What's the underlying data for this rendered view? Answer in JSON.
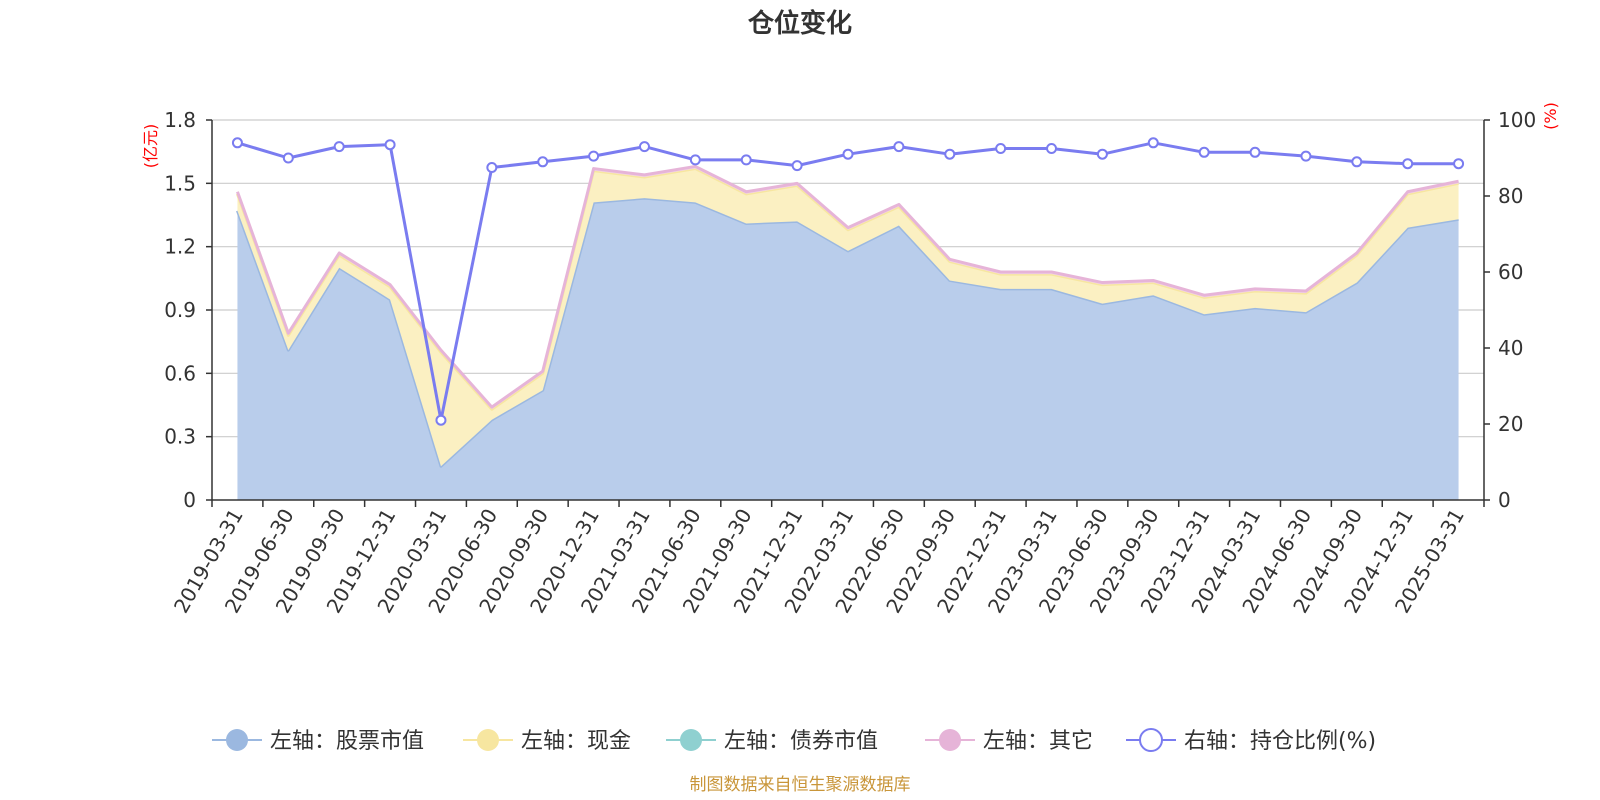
{
  "chart_data": {
    "type": "area",
    "title": "仓位变化",
    "categories": [
      "2019-03-31",
      "2019-06-30",
      "2019-09-30",
      "2019-12-31",
      "2020-03-31",
      "2020-06-30",
      "2020-09-30",
      "2020-12-31",
      "2021-03-31",
      "2021-06-30",
      "2021-09-30",
      "2021-12-31",
      "2022-03-31",
      "2022-06-30",
      "2022-09-30",
      "2022-12-31",
      "2023-03-31",
      "2023-06-30",
      "2023-09-30",
      "2023-12-31",
      "2024-03-31",
      "2024-06-30",
      "2024-09-30",
      "2024-12-31",
      "2025-03-31"
    ],
    "left_axis": {
      "unit": "(亿元)",
      "min": 0,
      "max": 1.8,
      "ticks": [
        "0",
        "0.3",
        "0.6",
        "0.9",
        "1.2",
        "1.5",
        "1.8"
      ]
    },
    "right_axis": {
      "unit": "(%)",
      "min": 0,
      "max": 100,
      "ticks": [
        "0",
        "20",
        "40",
        "60",
        "80",
        "100"
      ]
    },
    "series": [
      {
        "name": "左轴：股票市值",
        "axis": "left",
        "color": "#9bb8e0",
        "fill": "#b9cdeb",
        "values": [
          1.37,
          0.71,
          1.1,
          0.95,
          0.16,
          0.38,
          0.52,
          1.41,
          1.43,
          1.41,
          1.31,
          1.32,
          1.18,
          1.3,
          1.04,
          1.0,
          1.0,
          0.93,
          0.97,
          0.88,
          0.91,
          0.89,
          1.03,
          1.29,
          1.33
        ]
      },
      {
        "name": "左轴：现金",
        "axis": "left",
        "color": "#f7e6a0",
        "fill": "#fbf0c2",
        "values": [
          0.08,
          0.07,
          0.06,
          0.06,
          0.54,
          0.05,
          0.08,
          0.15,
          0.1,
          0.16,
          0.14,
          0.17,
          0.1,
          0.09,
          0.09,
          0.07,
          0.07,
          0.09,
          0.06,
          0.08,
          0.08,
          0.09,
          0.13,
          0.16,
          0.17
        ]
      },
      {
        "name": "左轴：债券市值",
        "axis": "left",
        "color": "#8fd0d0",
        "fill": "#bfe5e5",
        "values": [
          0,
          0,
          0,
          0,
          0,
          0,
          0,
          0,
          0,
          0,
          0,
          0,
          0,
          0,
          0,
          0,
          0,
          0,
          0,
          0,
          0,
          0,
          0,
          0,
          0
        ]
      },
      {
        "name": "左轴：其它",
        "axis": "left",
        "color": "#e6b4d8",
        "fill": "#f3d5ea",
        "values": [
          0.01,
          0.01,
          0.01,
          0.01,
          0.01,
          0.01,
          0.01,
          0.01,
          0.01,
          0.01,
          0.01,
          0.01,
          0.01,
          0.01,
          0.01,
          0.01,
          0.01,
          0.01,
          0.01,
          0.01,
          0.01,
          0.01,
          0.01,
          0.01,
          0.01
        ]
      },
      {
        "name": "右轴：持仓比例(%)",
        "axis": "right",
        "color": "#7a7cf0",
        "values": [
          94,
          90,
          93,
          93.5,
          21,
          87.5,
          89,
          90.5,
          93,
          89.5,
          89.5,
          88,
          91,
          93,
          91,
          92.5,
          92.5,
          91,
          94,
          91.5,
          91.5,
          90.5,
          89,
          88.5,
          88.5
        ]
      }
    ],
    "legend_position": "bottom",
    "grid": true
  },
  "source_note": "制图数据来自恒生聚源数据库"
}
